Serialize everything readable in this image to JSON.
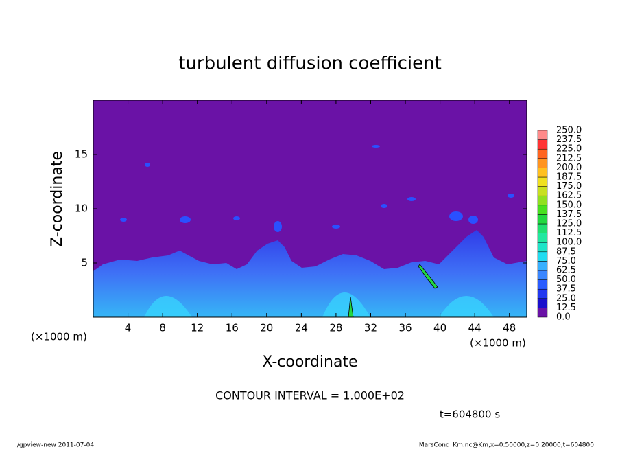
{
  "chart_data": {
    "type": "contour",
    "title": "turbulent diffusion coefficient",
    "xlabel": "X-coordinate",
    "ylabel": "Z-coordinate",
    "xunit": "(×1000 m)",
    "yunit": "(×1000 m)",
    "xlim": [
      0,
      50
    ],
    "ylim": [
      0,
      20
    ],
    "xticks": [
      4,
      8,
      12,
      16,
      20,
      24,
      28,
      32,
      36,
      40,
      44,
      48
    ],
    "yticks": [
      5,
      10,
      15
    ],
    "contour_note": "CONTOUR INTERVAL = 1.000E+02",
    "time_label": "t=604800 s",
    "footer_left": "./gpview-new   2011-07-04",
    "footer_right": "MarsCond_Km.nc@Km,x=0:50000,z=0:20000,t=604800",
    "colorbar": {
      "levels": [
        {
          "value": 0,
          "label": "0.0"
        },
        12.5,
        {
          "value": 25,
          "label": "25.0"
        },
        37.5,
        {
          "value": 50,
          "label": "50.0"
        },
        62.5,
        {
          "value": 75,
          "label": "75.0"
        },
        87.5,
        {
          "value": 100,
          "label": "100.0"
        },
        112.5,
        {
          "value": 125,
          "label": "125.0"
        },
        137.5,
        {
          "value": 150,
          "label": "150.0"
        },
        162.5,
        {
          "value": 175,
          "label": "175.0"
        },
        187.5,
        {
          "value": 200,
          "label": "200.0"
        },
        212.5,
        {
          "value": 225,
          "label": "225.0"
        },
        237.5,
        {
          "value": 250,
          "label": "250.0"
        }
      ],
      "colors": [
        "#6a12a6",
        "#1a0fcc",
        "#2238f0",
        "#2a5cff",
        "#3a86ff",
        "#38b0ff",
        "#22dcf0",
        "#20e4c8",
        "#22e8a0",
        "#20e070",
        "#22d840",
        "#48e020",
        "#90e020",
        "#c8e020",
        "#f0e020",
        "#ffc020",
        "#ff9420",
        "#ff6420",
        "#ff3434",
        "#ff8a8a"
      ]
    }
  }
}
